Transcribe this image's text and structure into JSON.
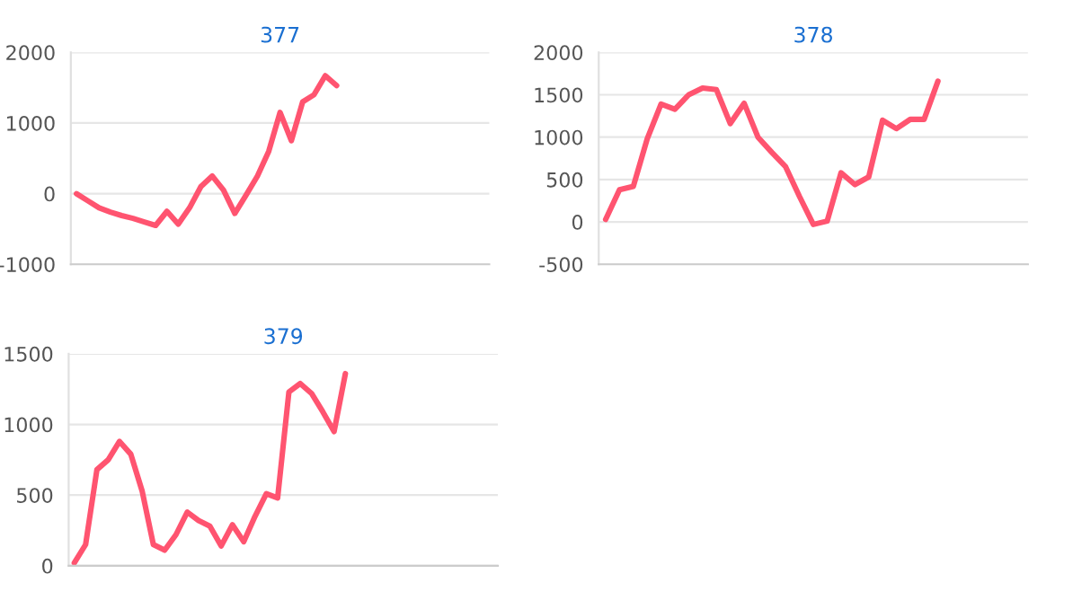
{
  "chart_data": [
    {
      "type": "line",
      "title": "377",
      "categories": [
        null,
        null,
        null,
        null,
        null,
        null,
        null,
        null,
        null,
        null,
        null,
        null,
        null,
        null,
        null,
        null,
        null,
        null,
        null,
        null,
        null,
        null,
        null,
        null,
        null,
        null,
        null,
        null,
        null,
        null,
        null,
        null,
        null,
        null,
        null,
        null,
        null
      ],
      "ylim": [
        -1000,
        2000
      ],
      "yticks": [
        -1000,
        0,
        1000,
        2000
      ],
      "grid": "y",
      "tick_labels": "y",
      "series": [
        {
          "color": "#ff5470",
          "values": [
            0,
            -100,
            -200,
            -260,
            -310,
            -350,
            -400,
            -450,
            -250,
            -430,
            -200,
            100,
            250,
            50,
            -280,
            -20,
            250,
            600,
            1150,
            750,
            1300,
            1400,
            1670,
            1530,
            null,
            null,
            null,
            null,
            null,
            null,
            null,
            null,
            null,
            null,
            null,
            null,
            null
          ]
        }
      ]
    },
    {
      "type": "line",
      "title": "378",
      "categories": [
        null,
        null,
        null,
        null,
        null,
        null,
        null,
        null,
        null,
        null,
        null,
        null,
        null,
        null,
        null,
        null,
        null,
        null,
        null,
        null,
        null,
        null,
        null,
        null,
        null,
        null,
        null,
        null,
        null,
        null,
        null
      ],
      "ylim": [
        -500,
        2000
      ],
      "yticks": [
        -500,
        0,
        500,
        1000,
        1500,
        2000
      ],
      "grid": "y",
      "tick_labels": "y",
      "series": [
        {
          "color": "#ff5470",
          "values": [
            30,
            380,
            420,
            980,
            1390,
            1330,
            1500,
            1580,
            1560,
            1160,
            1400,
            1000,
            820,
            650,
            300,
            -30,
            10,
            580,
            440,
            530,
            1200,
            1100,
            1210,
            1210,
            1660,
            null,
            null,
            null,
            null,
            null,
            null
          ]
        }
      ]
    },
    {
      "type": "line",
      "title": "379",
      "categories": [
        null,
        null,
        null,
        null,
        null,
        null,
        null,
        null,
        null,
        null,
        null,
        null,
        null,
        null,
        null,
        null,
        null,
        null,
        null,
        null,
        null,
        null,
        null,
        null,
        null,
        null,
        null,
        null,
        null,
        null,
        null,
        null,
        null,
        null,
        null,
        null,
        null,
        null
      ],
      "ylim": [
        0,
        1500
      ],
      "yticks": [
        0,
        500,
        1000,
        1500
      ],
      "grid": "y",
      "tick_labels": "y",
      "series": [
        {
          "color": "#ff5470",
          "values": [
            20,
            150,
            680,
            750,
            880,
            790,
            530,
            150,
            110,
            220,
            380,
            320,
            280,
            140,
            290,
            170,
            350,
            510,
            480,
            1230,
            1290,
            1220,
            1090,
            950,
            1360,
            null,
            null,
            null,
            null,
            null,
            null,
            null,
            null,
            null,
            null,
            null,
            null,
            null
          ]
        }
      ]
    }
  ]
}
